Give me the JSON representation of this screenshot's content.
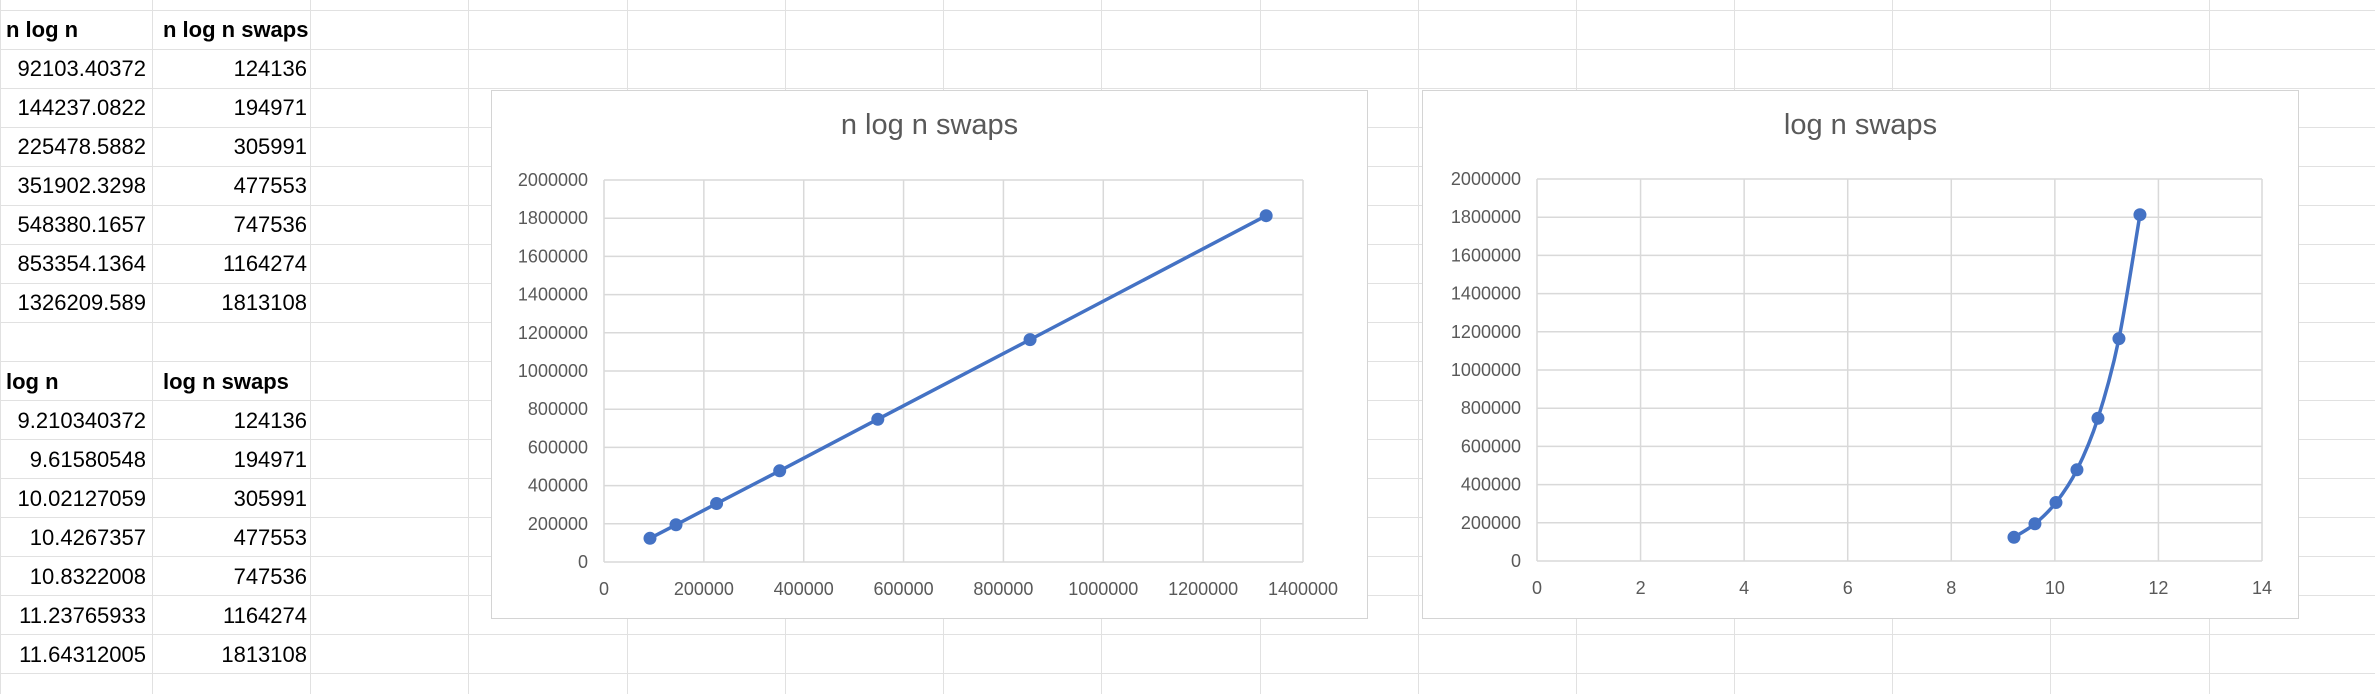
{
  "sheet": {
    "table1": {
      "headers": [
        "n log n",
        "n log n swaps"
      ],
      "rows": [
        [
          "92103.40372",
          "124136"
        ],
        [
          "144237.0822",
          "194971"
        ],
        [
          "225478.5882",
          "305991"
        ],
        [
          "351902.3298",
          "477553"
        ],
        [
          "548380.1657",
          "747536"
        ],
        [
          "853354.1364",
          "1164274"
        ],
        [
          "1326209.589",
          "1813108"
        ]
      ]
    },
    "table2": {
      "headers": [
        "log n",
        "log n swaps"
      ],
      "rows": [
        [
          "9.210340372",
          "124136"
        ],
        [
          "9.61580548",
          "194971"
        ],
        [
          "10.02127059",
          "305991"
        ],
        [
          "10.4267357",
          "477553"
        ],
        [
          "10.8322008",
          "747536"
        ],
        [
          "11.23765933",
          "1164274"
        ],
        [
          "11.64312005",
          "1813108"
        ]
      ]
    }
  },
  "chart_data": [
    {
      "type": "scatter",
      "title": "n log n swaps",
      "xlim": [
        0,
        1400000
      ],
      "ylim": [
        0,
        2000000
      ],
      "xticks": [
        "0",
        "200000",
        "400000",
        "600000",
        "800000",
        "1000000",
        "1200000",
        "1400000"
      ],
      "yticks": [
        "0",
        "200000",
        "400000",
        "600000",
        "800000",
        "1000000",
        "1200000",
        "1400000",
        "1600000",
        "1800000",
        "2000000"
      ],
      "series": [
        {
          "color": "#4472c4",
          "x": [
            92103.40372,
            144237.0822,
            225478.5882,
            351902.3298,
            548380.1657,
            853354.1364,
            1326209.589
          ],
          "y": [
            124136,
            194971,
            305991,
            477553,
            747536,
            1164274,
            1813108
          ]
        }
      ],
      "grid": true,
      "line": "straight"
    },
    {
      "type": "scatter",
      "title": "log n swaps",
      "xlim": [
        0,
        14
      ],
      "ylim": [
        0,
        2000000
      ],
      "xticks": [
        "0",
        "2",
        "4",
        "6",
        "8",
        "10",
        "12",
        "14"
      ],
      "yticks": [
        "0",
        "200000",
        "400000",
        "600000",
        "800000",
        "1000000",
        "1200000",
        "1400000",
        "1600000",
        "1800000",
        "2000000"
      ],
      "series": [
        {
          "color": "#4472c4",
          "x": [
            9.210340372,
            9.61580548,
            10.02127059,
            10.4267357,
            10.8322008,
            11.23765933,
            11.64312005
          ],
          "y": [
            124136,
            194971,
            305991,
            477553,
            747536,
            1164274,
            1813108
          ]
        }
      ],
      "grid": true,
      "line": "smooth"
    }
  ]
}
